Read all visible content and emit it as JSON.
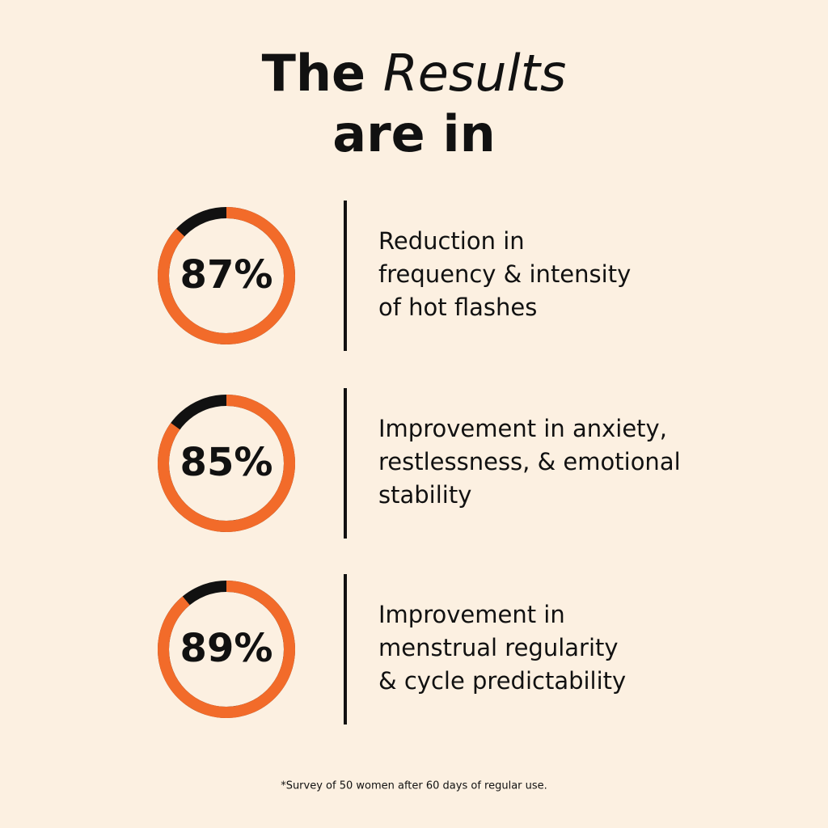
{
  "header": {
    "title_plain": "The",
    "title_italic": "Results",
    "title_line2": "are in"
  },
  "stats": [
    {
      "value": 87,
      "label": "87%",
      "lines": [
        "Reduction in",
        "frequency & intensity",
        "of hot flashes"
      ]
    },
    {
      "value": 85,
      "label": "85%",
      "lines": [
        "Improvement in anxiety,",
        "restlessness, & emotional",
        "stability"
      ]
    },
    {
      "value": 89,
      "label": "89%",
      "lines": [
        "Improvement in",
        "menstrual regularity",
        "& cycle predictability"
      ]
    }
  ],
  "footnote": "*Survey of 50 women after 60 days of regular use."
}
